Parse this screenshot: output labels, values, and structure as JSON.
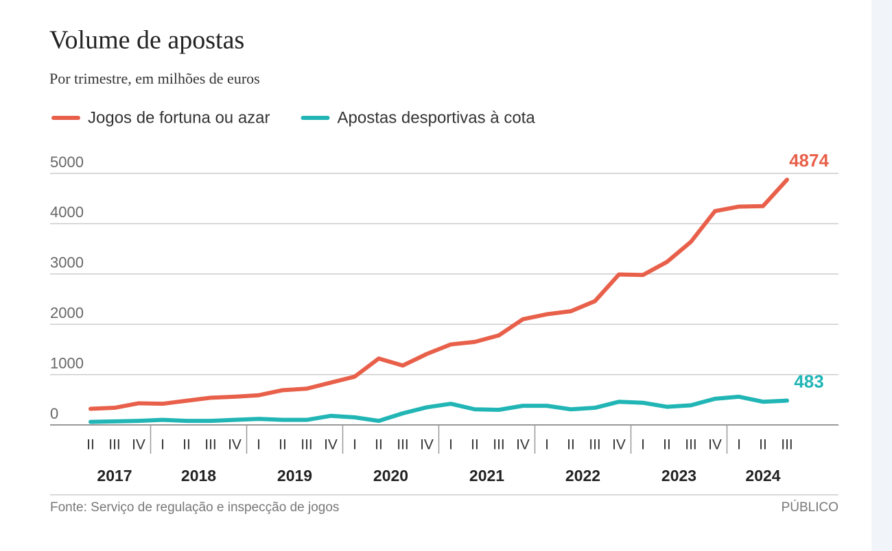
{
  "chart_data": {
    "type": "line",
    "title": "Volume de apostas",
    "subtitle": "Por trimestre, em milhões de euros",
    "categories": [
      "II",
      "III",
      "IV",
      "I",
      "II",
      "III",
      "IV",
      "I",
      "II",
      "III",
      "IV",
      "I",
      "II",
      "III",
      "IV",
      "I",
      "II",
      "III",
      "IV",
      "I",
      "II",
      "III",
      "IV",
      "I",
      "II",
      "III",
      "IV",
      "I",
      "II",
      "III"
    ],
    "years": [
      "2017",
      "2018",
      "2019",
      "2020",
      "2021",
      "2022",
      "2023",
      "2024"
    ],
    "series": [
      {
        "name": "Jogos de fortuna ou azar",
        "color": "#e8604a",
        "values": [
          320,
          340,
          430,
          420,
          480,
          540,
          560,
          590,
          690,
          720,
          840,
          960,
          1320,
          1180,
          1410,
          1600,
          1650,
          1780,
          2100,
          2200,
          2260,
          2460,
          2990,
          2980,
          3240,
          3640,
          4250,
          4340,
          4350,
          4874
        ]
      },
      {
        "name": "Apostas desportivas à cota",
        "color": "#21b5b5",
        "values": [
          60,
          70,
          80,
          100,
          80,
          80,
          100,
          120,
          100,
          100,
          180,
          150,
          80,
          230,
          350,
          420,
          310,
          300,
          380,
          380,
          310,
          340,
          460,
          440,
          360,
          390,
          520,
          560,
          460,
          483
        ]
      }
    ],
    "ylim": [
      0,
      5000
    ],
    "yticks": [
      0,
      1000,
      2000,
      3000,
      4000,
      5000
    ],
    "grid": true,
    "source": "Fonte: Serviço de regulação e inspecção de jogos",
    "credit": "PÚBLICO"
  }
}
